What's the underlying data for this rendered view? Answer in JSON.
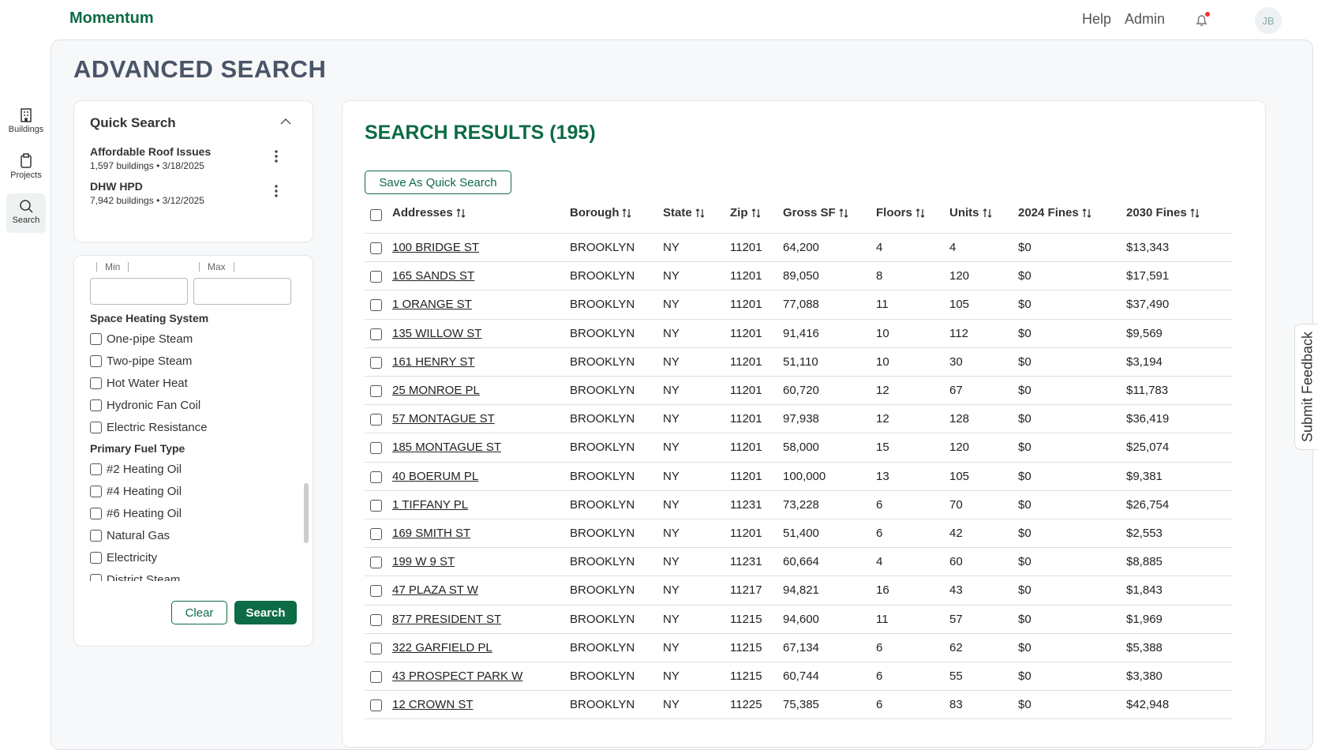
{
  "header": {
    "brand": "Momentum",
    "links": [
      "Help",
      "Admin"
    ],
    "avatar": "JB"
  },
  "sidebar": [
    "Buildings",
    "Projects",
    "Search"
  ],
  "page_title": "ADVANCED SEARCH",
  "quick_search": {
    "title": "Quick Search",
    "items": [
      {
        "name": "Affordable Roof Issues",
        "meta": "1,597 buildings • 3/18/2025"
      },
      {
        "name": "DHW HPD",
        "meta": "7,942 buildings • 3/12/2025"
      }
    ]
  },
  "filters": {
    "min_label": "Min",
    "max_label": "Max",
    "groups": [
      {
        "title": "Space Heating System",
        "options": [
          "One-pipe Steam",
          "Two-pipe Steam",
          "Hot Water Heat",
          "Hydronic Fan Coil",
          "Electric Resistance"
        ]
      },
      {
        "title": "Primary Fuel Type",
        "options": [
          "#2 Heating Oil",
          "#4 Heating Oil",
          "#6 Heating Oil",
          "Natural Gas",
          "Electricity",
          "District Steam"
        ]
      }
    ],
    "clear": "Clear",
    "search": "Search"
  },
  "results": {
    "title": "SEARCH RESULTS (195)",
    "save_button": "Save As Quick Search",
    "columns": [
      "Addresses",
      "Borough",
      "State",
      "Zip",
      "Gross SF",
      "Floors",
      "Units",
      "2024 Fines",
      "2030 Fines"
    ],
    "rows": [
      [
        "100 BRIDGE ST",
        "BROOKLYN",
        "NY",
        "11201",
        "64,200",
        "4",
        "4",
        "$0",
        "$13,343"
      ],
      [
        "165 SANDS ST",
        "BROOKLYN",
        "NY",
        "11201",
        "89,050",
        "8",
        "120",
        "$0",
        "$17,591"
      ],
      [
        "1 ORANGE ST",
        "BROOKLYN",
        "NY",
        "11201",
        "77,088",
        "11",
        "105",
        "$0",
        "$37,490"
      ],
      [
        "135 WILLOW ST",
        "BROOKLYN",
        "NY",
        "11201",
        "91,416",
        "10",
        "112",
        "$0",
        "$9,569"
      ],
      [
        "161 HENRY ST",
        "BROOKLYN",
        "NY",
        "11201",
        "51,110",
        "10",
        "30",
        "$0",
        "$3,194"
      ],
      [
        "25 MONROE PL",
        "BROOKLYN",
        "NY",
        "11201",
        "60,720",
        "12",
        "67",
        "$0",
        "$11,783"
      ],
      [
        "57 MONTAGUE ST",
        "BROOKLYN",
        "NY",
        "11201",
        "97,938",
        "12",
        "128",
        "$0",
        "$36,419"
      ],
      [
        "185 MONTAGUE ST",
        "BROOKLYN",
        "NY",
        "11201",
        "58,000",
        "15",
        "120",
        "$0",
        "$25,074"
      ],
      [
        "40 BOERUM PL",
        "BROOKLYN",
        "NY",
        "11201",
        "100,000",
        "13",
        "105",
        "$0",
        "$9,381"
      ],
      [
        "1 TIFFANY PL",
        "BROOKLYN",
        "NY",
        "11231",
        "73,228",
        "6",
        "70",
        "$0",
        "$26,754"
      ],
      [
        "169 SMITH ST",
        "BROOKLYN",
        "NY",
        "11201",
        "51,400",
        "6",
        "42",
        "$0",
        "$2,553"
      ],
      [
        "199 W 9 ST",
        "BROOKLYN",
        "NY",
        "11231",
        "60,664",
        "4",
        "60",
        "$0",
        "$8,885"
      ],
      [
        "47 PLAZA ST W",
        "BROOKLYN",
        "NY",
        "11217",
        "94,821",
        "16",
        "43",
        "$0",
        "$1,843"
      ],
      [
        "877 PRESIDENT ST",
        "BROOKLYN",
        "NY",
        "11215",
        "94,600",
        "11",
        "57",
        "$0",
        "$1,969"
      ],
      [
        "322 GARFIELD PL",
        "BROOKLYN",
        "NY",
        "11215",
        "67,134",
        "6",
        "62",
        "$0",
        "$5,388"
      ],
      [
        "43 PROSPECT PARK W",
        "BROOKLYN",
        "NY",
        "11215",
        "60,744",
        "6",
        "55",
        "$0",
        "$3,380"
      ],
      [
        "12 CROWN ST",
        "BROOKLYN",
        "NY",
        "11225",
        "75,385",
        "6",
        "83",
        "$0",
        "$42,948"
      ]
    ]
  },
  "feedback": "Submit Feedback"
}
